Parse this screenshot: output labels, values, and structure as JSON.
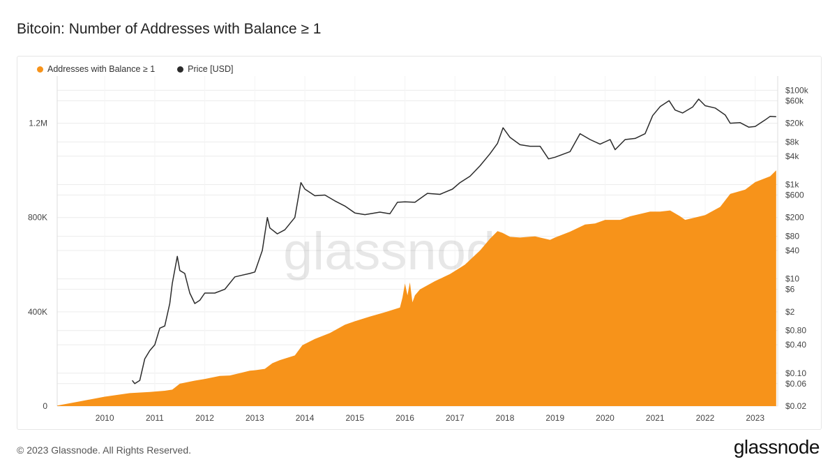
{
  "header": {
    "title": "Bitcoin: Number of Addresses with Balance ≥ 1"
  },
  "footer": {
    "copyright": "© 2023 Glassnode. All Rights Reserved.",
    "logo": "glassnode"
  },
  "watermark": "glassnode",
  "colors": {
    "addresses": "#f7931a",
    "price": "#2b2b2b",
    "grid": "#ececec"
  },
  "chart_data": {
    "type": "area",
    "title": "Bitcoin: Number of Addresses with Balance ≥ 1",
    "legend_position": "top-left",
    "grid": true,
    "x_ticks": [
      "2010",
      "2011",
      "2012",
      "2013",
      "2014",
      "2015",
      "2016",
      "2017",
      "2018",
      "2019",
      "2020",
      "2021",
      "2022",
      "2023"
    ],
    "x_range": [
      2009.05,
      2023.45
    ],
    "y_left": {
      "ticks": [
        {
          "v": 0,
          "label": "0"
        },
        {
          "v": 400000,
          "label": "400K"
        },
        {
          "v": 800000,
          "label": "800K"
        },
        {
          "v": 1200000,
          "label": "1.2M"
        }
      ],
      "range": [
        0,
        1400000
      ]
    },
    "y_right": {
      "scale": "log",
      "range": [
        0.02,
        200000
      ],
      "ticks": [
        {
          "v": 100000,
          "label": "$100k"
        },
        {
          "v": 60000,
          "label": "$60k"
        },
        {
          "v": 20000,
          "label": "$20k"
        },
        {
          "v": 8000,
          "label": "$8k"
        },
        {
          "v": 4000,
          "label": "$4k"
        },
        {
          "v": 1000,
          "label": "$1k"
        },
        {
          "v": 600,
          "label": "$600"
        },
        {
          "v": 200,
          "label": "$200"
        },
        {
          "v": 80,
          "label": "$80"
        },
        {
          "v": 40,
          "label": "$40"
        },
        {
          "v": 10,
          "label": "$10"
        },
        {
          "v": 6,
          "label": "$6"
        },
        {
          "v": 2,
          "label": "$2"
        },
        {
          "v": 0.8,
          "label": "$0.80"
        },
        {
          "v": 0.4,
          "label": "$0.40"
        },
        {
          "v": 0.1,
          "label": "$0.10"
        },
        {
          "v": 0.06,
          "label": "$0.06"
        },
        {
          "v": 0.02,
          "label": "$0.02"
        }
      ]
    },
    "series": [
      {
        "name": "Addresses with Balance ≥ 1",
        "axis": "left",
        "x": [
          2009.05,
          2009.5,
          2010.0,
          2010.5,
          2010.9,
          2011.2,
          2011.35,
          2011.5,
          2011.8,
          2012.0,
          2012.3,
          2012.5,
          2012.7,
          2012.9,
          2013.0,
          2013.2,
          2013.35,
          2013.5,
          2013.8,
          2013.95,
          2014.2,
          2014.5,
          2014.8,
          2015.0,
          2015.3,
          2015.6,
          2015.9,
          2015.95,
          2016.0,
          2016.05,
          2016.1,
          2016.15,
          2016.2,
          2016.3,
          2016.6,
          2016.9,
          2017.2,
          2017.5,
          2017.7,
          2017.85,
          2017.95,
          2018.1,
          2018.3,
          2018.6,
          2018.9,
          2019.0,
          2019.3,
          2019.6,
          2019.8,
          2020.0,
          2020.3,
          2020.5,
          2020.7,
          2020.9,
          2021.1,
          2021.3,
          2021.5,
          2021.6,
          2021.8,
          2022.0,
          2022.3,
          2022.5,
          2022.8,
          2023.0,
          2023.3,
          2023.42
        ],
        "values": [
          2000,
          20000,
          40000,
          55000,
          60000,
          65000,
          70000,
          95000,
          108000,
          115000,
          128000,
          130000,
          140000,
          150000,
          152000,
          158000,
          182000,
          195000,
          215000,
          258000,
          285000,
          310000,
          345000,
          360000,
          380000,
          398000,
          418000,
          460000,
          520000,
          470000,
          525000,
          440000,
          470000,
          495000,
          530000,
          560000,
          600000,
          660000,
          710000,
          742000,
          735000,
          718000,
          715000,
          720000,
          705000,
          715000,
          740000,
          770000,
          775000,
          790000,
          790000,
          805000,
          815000,
          825000,
          825000,
          830000,
          805000,
          790000,
          800000,
          810000,
          845000,
          900000,
          918000,
          950000,
          975000,
          1000000
        ]
      },
      {
        "name": "Price [USD]",
        "axis": "right",
        "x": [
          2010.55,
          2010.6,
          2010.7,
          2010.8,
          2010.9,
          2011.0,
          2011.1,
          2011.2,
          2011.3,
          2011.35,
          2011.45,
          2011.5,
          2011.6,
          2011.7,
          2011.8,
          2011.9,
          2012.0,
          2012.2,
          2012.4,
          2012.6,
          2012.75,
          2012.9,
          2013.0,
          2013.15,
          2013.25,
          2013.3,
          2013.45,
          2013.6,
          2013.8,
          2013.92,
          2014.0,
          2014.2,
          2014.4,
          2014.6,
          2014.8,
          2015.0,
          2015.2,
          2015.5,
          2015.7,
          2015.85,
          2016.0,
          2016.2,
          2016.45,
          2016.7,
          2016.95,
          2017.1,
          2017.3,
          2017.5,
          2017.7,
          2017.85,
          2017.96,
          2018.1,
          2018.3,
          2018.5,
          2018.7,
          2018.87,
          2019.0,
          2019.3,
          2019.5,
          2019.7,
          2019.9,
          2020.1,
          2020.2,
          2020.4,
          2020.6,
          2020.8,
          2020.95,
          2021.1,
          2021.28,
          2021.4,
          2021.55,
          2021.75,
          2021.87,
          2022.0,
          2022.2,
          2022.4,
          2022.5,
          2022.7,
          2022.87,
          2023.0,
          2023.2,
          2023.3,
          2023.42
        ],
        "values": [
          0.07,
          0.06,
          0.07,
          0.2,
          0.3,
          0.4,
          0.9,
          1.0,
          3,
          8,
          30,
          15,
          13,
          5,
          3,
          3.5,
          5,
          5,
          6,
          11,
          12,
          13,
          14,
          40,
          200,
          120,
          90,
          110,
          200,
          1100,
          800,
          580,
          600,
          450,
          350,
          250,
          230,
          260,
          240,
          420,
          430,
          420,
          650,
          620,
          800,
          1100,
          1500,
          2500,
          4500,
          7500,
          16000,
          10000,
          7000,
          6500,
          6500,
          3500,
          3800,
          5000,
          12000,
          9000,
          7200,
          9000,
          5500,
          9000,
          9500,
          12000,
          29000,
          45000,
          60000,
          38000,
          33000,
          44000,
          65000,
          47000,
          42000,
          30000,
          20000,
          20500,
          16500,
          17000,
          23500,
          28000,
          27500
        ]
      }
    ]
  }
}
